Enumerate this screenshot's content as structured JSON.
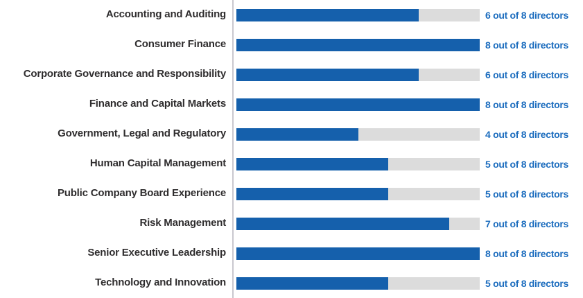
{
  "chart_data": {
    "type": "bar",
    "orientation": "horizontal",
    "title": "",
    "xlabel": "",
    "ylabel": "",
    "max_value": 8,
    "xlim": [
      0,
      8
    ],
    "grid": false,
    "legend": false,
    "value_label_suffix": "out of 8 directors",
    "categories": [
      "Accounting and Auditing",
      "Consumer Finance",
      "Corporate Governance and Responsibility",
      "Finance and Capital Markets",
      "Government, Legal and Regulatory",
      "Human Capital Management",
      "Public Company Board Experience",
      "Risk Management",
      "Senior Executive Leadership",
      "Technology and Innovation"
    ],
    "values": [
      6,
      8,
      6,
      8,
      4,
      5,
      5,
      7,
      8,
      5
    ],
    "rows": [
      {
        "label": "Accounting and Auditing",
        "value": 6,
        "value_text": "6 out of 8 directors"
      },
      {
        "label": "Consumer Finance",
        "value": 8,
        "value_text": "8 out of 8 directors"
      },
      {
        "label": "Corporate Governance and Responsibility",
        "value": 6,
        "value_text": "6 out of 8 directors"
      },
      {
        "label": "Finance and Capital Markets",
        "value": 8,
        "value_text": "8 out of 8 directors"
      },
      {
        "label": "Government, Legal and Regulatory",
        "value": 4,
        "value_text": "4 out of 8 directors"
      },
      {
        "label": "Human Capital Management",
        "value": 5,
        "value_text": "5 out of 8 directors"
      },
      {
        "label": "Public Company Board Experience",
        "value": 5,
        "value_text": "5 out of 8 directors"
      },
      {
        "label": "Risk Management",
        "value": 7,
        "value_text": "7 out of 8 directors"
      },
      {
        "label": "Senior Executive Leadership",
        "value": 8,
        "value_text": "8 out of 8 directors"
      },
      {
        "label": "Technology and Innovation",
        "value": 5,
        "value_text": "5 out of 8 directors"
      }
    ]
  },
  "colors": {
    "bar_fill": "#1560ac",
    "bar_track": "#dcdcdc",
    "value_text": "#1b6cbe",
    "category_text": "#2f2d2e",
    "axis_line": "#c9c8cf"
  }
}
